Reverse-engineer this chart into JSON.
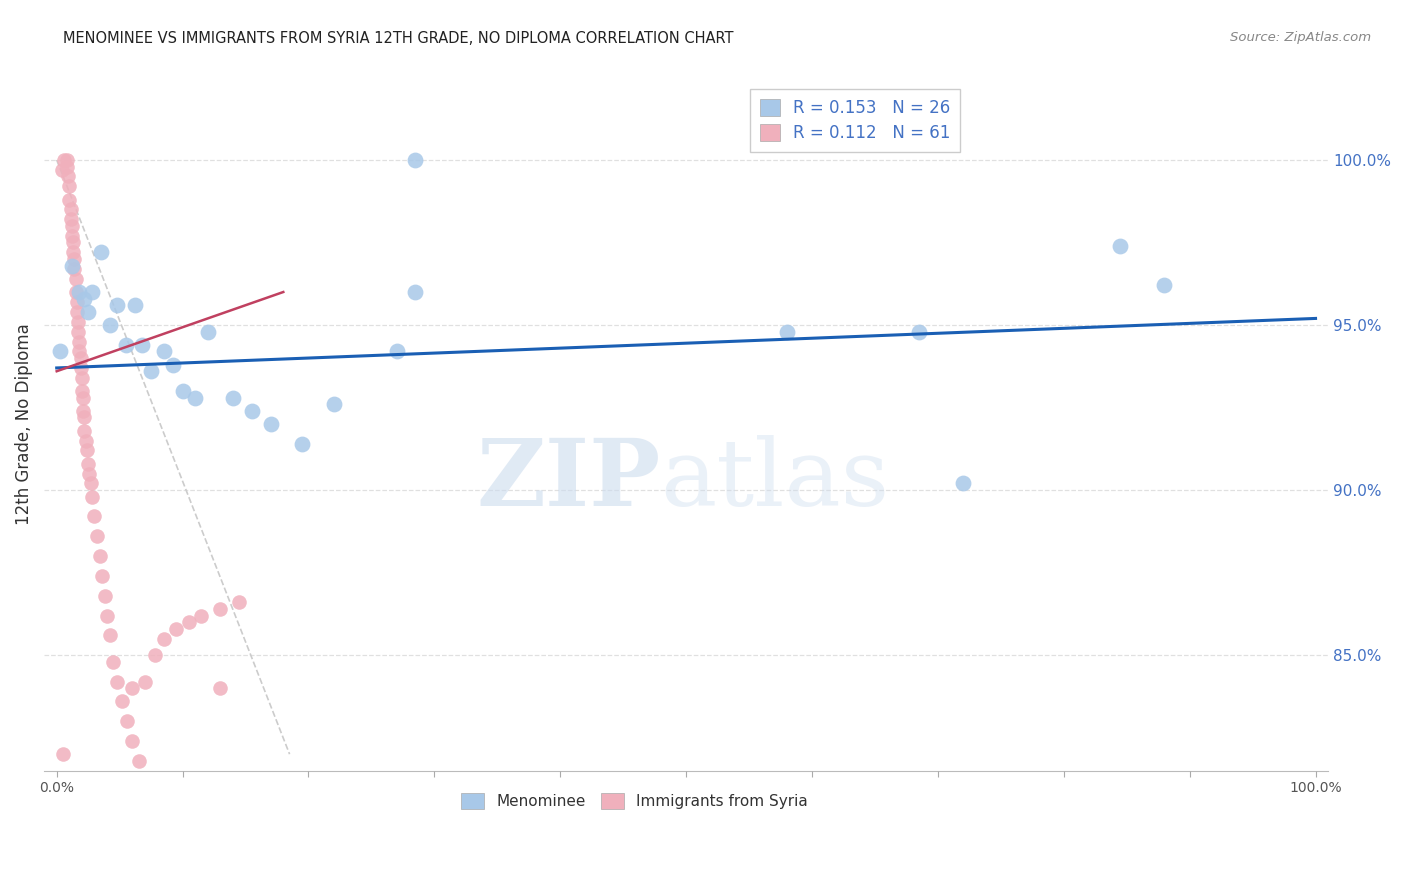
{
  "title": "MENOMINEE VS IMMIGRANTS FROM SYRIA 12TH GRADE, NO DIPLOMA CORRELATION CHART",
  "source": "Source: ZipAtlas.com",
  "ylabel": "12th Grade, No Diploma",
  "xlim": [
    -0.01,
    1.01
  ],
  "ylim": [
    0.815,
    1.025
  ],
  "menominee_color": "#a8c8e8",
  "syria_color": "#f0b0bc",
  "blue_line_color": "#1a5fb4",
  "pink_line_color": "#c04060",
  "diagonal_color": "#cccccc",
  "background_color": "#ffffff",
  "grid_color": "#e0e0e0",
  "menominee_x": [
    0.003,
    0.012,
    0.018,
    0.022,
    0.025,
    0.028,
    0.035,
    0.042,
    0.048,
    0.055,
    0.062,
    0.068,
    0.075,
    0.085,
    0.092,
    0.1,
    0.11,
    0.12,
    0.14,
    0.155,
    0.17,
    0.195,
    0.22,
    0.27,
    0.285,
    0.285,
    0.58,
    0.685,
    0.72,
    0.845,
    0.88
  ],
  "menominee_y": [
    0.942,
    0.968,
    0.96,
    0.958,
    0.954,
    0.96,
    0.972,
    0.95,
    0.956,
    0.944,
    0.956,
    0.944,
    0.936,
    0.942,
    0.938,
    0.93,
    0.928,
    0.948,
    0.928,
    0.924,
    0.92,
    0.914,
    0.926,
    0.942,
    0.96,
    1.0,
    0.948,
    0.948,
    0.902,
    0.974,
    0.962
  ],
  "syria_x": [
    0.004,
    0.006,
    0.008,
    0.008,
    0.009,
    0.01,
    0.01,
    0.011,
    0.011,
    0.012,
    0.012,
    0.013,
    0.013,
    0.014,
    0.014,
    0.015,
    0.015,
    0.016,
    0.016,
    0.017,
    0.017,
    0.018,
    0.018,
    0.019,
    0.019,
    0.02,
    0.02,
    0.021,
    0.021,
    0.022,
    0.022,
    0.023,
    0.024,
    0.025,
    0.026,
    0.027,
    0.028,
    0.03,
    0.032,
    0.034,
    0.036,
    0.038,
    0.04,
    0.042,
    0.045,
    0.048,
    0.052,
    0.056,
    0.06,
    0.065,
    0.07,
    0.078,
    0.085,
    0.095,
    0.105,
    0.115,
    0.13,
    0.145,
    0.005,
    0.13,
    0.06
  ],
  "syria_y": [
    0.997,
    1.0,
    1.0,
    0.998,
    0.995,
    0.992,
    0.988,
    0.985,
    0.982,
    0.98,
    0.977,
    0.975,
    0.972,
    0.97,
    0.967,
    0.964,
    0.96,
    0.957,
    0.954,
    0.951,
    0.948,
    0.945,
    0.942,
    0.94,
    0.937,
    0.934,
    0.93,
    0.928,
    0.924,
    0.922,
    0.918,
    0.915,
    0.912,
    0.908,
    0.905,
    0.902,
    0.898,
    0.892,
    0.886,
    0.88,
    0.874,
    0.868,
    0.862,
    0.856,
    0.848,
    0.842,
    0.836,
    0.83,
    0.824,
    0.818,
    0.842,
    0.85,
    0.855,
    0.858,
    0.86,
    0.862,
    0.864,
    0.866,
    0.82,
    0.84,
    0.84
  ],
  "blue_line_x": [
    0.0,
    1.0
  ],
  "blue_line_y": [
    0.937,
    0.952
  ],
  "pink_line_x": [
    0.0,
    0.18
  ],
  "pink_line_y": [
    0.936,
    0.96
  ],
  "diag_line_x": [
    0.0,
    0.185
  ],
  "diag_line_y": [
    1.0,
    0.82
  ],
  "right_yticks": [
    1.0,
    0.95,
    0.9,
    0.85
  ],
  "right_yticklabels": [
    "100.0%",
    "95.0%",
    "90.0%",
    "85.0%"
  ]
}
